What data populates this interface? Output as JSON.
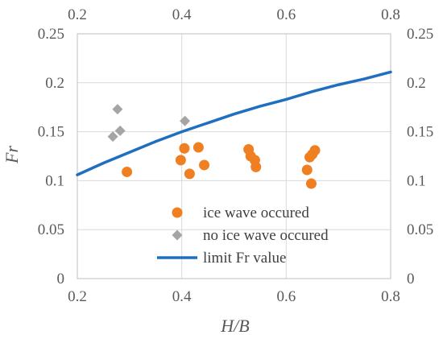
{
  "chart_data": {
    "type": "scatter",
    "xlabel": "H/B",
    "ylabel": "Fr",
    "xlim": [
      0.2,
      0.8
    ],
    "ylim": [
      0,
      0.25
    ],
    "x_ticks": [
      "0.2",
      "0.4",
      "0.6",
      "0.8"
    ],
    "y_ticks": [
      "0",
      "0.05",
      "0.1",
      "0.15",
      "0.2",
      "0.25"
    ],
    "top_axis_ticks": [
      "0.2",
      "0.4",
      "0.6",
      "0.8"
    ],
    "right_axis_ticks": [
      "0",
      "0.05",
      "0.1",
      "0.15",
      "0.2",
      "0.25"
    ],
    "grid": true,
    "legend_position": "bottom-center",
    "series": [
      {
        "name": "ice wave occured",
        "marker": "circle",
        "color": "#F07F22",
        "points": [
          [
            0.295,
            0.109
          ],
          [
            0.398,
            0.121
          ],
          [
            0.405,
            0.133
          ],
          [
            0.415,
            0.107
          ],
          [
            0.432,
            0.134
          ],
          [
            0.443,
            0.116
          ],
          [
            0.528,
            0.132
          ],
          [
            0.532,
            0.125
          ],
          [
            0.54,
            0.121
          ],
          [
            0.542,
            0.114
          ],
          [
            0.64,
            0.111
          ],
          [
            0.645,
            0.124
          ],
          [
            0.648,
            0.097
          ],
          [
            0.65,
            0.127
          ],
          [
            0.655,
            0.131
          ]
        ]
      },
      {
        "name": "no ice wave occured",
        "marker": "diamond",
        "color": "#A5A5A5",
        "points": [
          [
            0.268,
            0.145
          ],
          [
            0.277,
            0.173
          ],
          [
            0.282,
            0.151
          ],
          [
            0.406,
            0.161
          ]
        ]
      },
      {
        "name": "limit Fr value",
        "type": "line",
        "color": "#1F6EBF",
        "points": [
          [
            0.2,
            0.106
          ],
          [
            0.25,
            0.118
          ],
          [
            0.3,
            0.129
          ],
          [
            0.35,
            0.14
          ],
          [
            0.4,
            0.15
          ],
          [
            0.45,
            0.159
          ],
          [
            0.5,
            0.168
          ],
          [
            0.55,
            0.176
          ],
          [
            0.6,
            0.183
          ],
          [
            0.65,
            0.191
          ],
          [
            0.7,
            0.198
          ],
          [
            0.75,
            0.204
          ],
          [
            0.8,
            0.211
          ]
        ]
      }
    ]
  }
}
